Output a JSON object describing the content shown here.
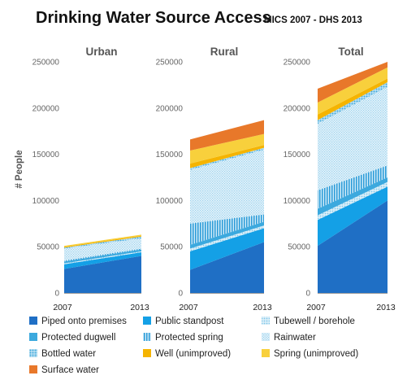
{
  "chart_data": {
    "type": "area",
    "title": "Drinking Water Source Access",
    "subtitle": "MICS 2007 - DHS 2013",
    "ylabel": "# People",
    "ylim": [
      0,
      250000
    ],
    "yticks": [
      0,
      50000,
      100000,
      150000,
      200000,
      250000
    ],
    "ytick_labels": [
      "0",
      "50000",
      "100000",
      "150000",
      "200000",
      "250000"
    ],
    "x": [
      "2007",
      "2013"
    ],
    "legend_position": "bottom",
    "series_meta": [
      {
        "name": "Piped onto premises",
        "color": "#1F6FC5",
        "pattern": "solid"
      },
      {
        "name": "Public standpost",
        "color": "#14A0E6",
        "pattern": "solid"
      },
      {
        "name": "Tubewell / borehole",
        "color": "#A9DCF0",
        "pattern": "fine-dots"
      },
      {
        "name": "Protected dugwell",
        "color": "#3CA9DE",
        "pattern": "solid"
      },
      {
        "name": "Protected spring",
        "color": "#2A9BD8",
        "pattern": "vertical-lines"
      },
      {
        "name": "Rainwater",
        "color": "#C6E6F4",
        "pattern": "light-dots"
      },
      {
        "name": "Bottled water",
        "color": "#7CC3E6",
        "pattern": "dots"
      },
      {
        "name": "Well (unimproved)",
        "color": "#F5B400",
        "pattern": "solid"
      },
      {
        "name": "Spring (unimproved)",
        "color": "#F8D03C",
        "pattern": "solid"
      },
      {
        "name": "Surface water",
        "color": "#E8782A",
        "pattern": "solid"
      }
    ],
    "panels": [
      {
        "title": "Urban",
        "series": [
          {
            "name": "Piped onto premises",
            "values": [
              26000,
              40000
            ]
          },
          {
            "name": "Public standpost",
            "values": [
              5000,
              4000
            ]
          },
          {
            "name": "Tubewell / borehole",
            "values": [
              1000,
              1000
            ]
          },
          {
            "name": "Protected dugwell",
            "values": [
              2000,
              2000
            ]
          },
          {
            "name": "Protected spring",
            "values": [
              1000,
              1000
            ]
          },
          {
            "name": "Rainwater",
            "values": [
              13000,
              11000
            ]
          },
          {
            "name": "Bottled water",
            "values": [
              1000,
              2000
            ]
          },
          {
            "name": "Well (unimproved)",
            "values": [
              1000,
              1000
            ]
          },
          {
            "name": "Spring (unimproved)",
            "values": [
              1000,
              1000
            ]
          },
          {
            "name": "Surface water",
            "values": [
              0,
              0
            ]
          }
        ]
      },
      {
        "title": "Rural",
        "series": [
          {
            "name": "Piped onto premises",
            "values": [
              25000,
              55000
            ]
          },
          {
            "name": "Public standpost",
            "values": [
              20000,
              15000
            ]
          },
          {
            "name": "Tubewell / borehole",
            "values": [
              3000,
              3000
            ]
          },
          {
            "name": "Protected dugwell",
            "values": [
              4000,
              4000
            ]
          },
          {
            "name": "Protected spring",
            "values": [
              23000,
              8000
            ]
          },
          {
            "name": "Rainwater",
            "values": [
              58000,
              70000
            ]
          },
          {
            "name": "Bottled water",
            "values": [
              2000,
              2000
            ]
          },
          {
            "name": "Well (unimproved)",
            "values": [
              5000,
              3000
            ]
          },
          {
            "name": "Spring (unimproved)",
            "values": [
              14000,
              12000
            ]
          },
          {
            "name": "Surface water",
            "values": [
              12000,
              15000
            ]
          }
        ]
      },
      {
        "title": "Total",
        "series": [
          {
            "name": "Piped onto premises",
            "values": [
              51000,
              100000
            ]
          },
          {
            "name": "Public standpost",
            "values": [
              28000,
              15000
            ]
          },
          {
            "name": "Tubewell / borehole",
            "values": [
              5000,
              5000
            ]
          },
          {
            "name": "Protected dugwell",
            "values": [
              7000,
              5000
            ]
          },
          {
            "name": "Protected spring",
            "values": [
              20000,
              13000
            ]
          },
          {
            "name": "Rainwater",
            "values": [
              72000,
              85000
            ]
          },
          {
            "name": "Bottled water",
            "values": [
              4000,
              5000
            ]
          },
          {
            "name": "Well (unimproved)",
            "values": [
              6000,
              4000
            ]
          },
          {
            "name": "Spring (unimproved)",
            "values": [
              13000,
              12000
            ]
          },
          {
            "name": "Surface water",
            "values": [
              15000,
              6000
            ]
          }
        ]
      }
    ]
  }
}
